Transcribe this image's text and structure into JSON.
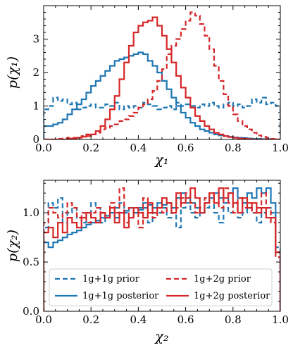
{
  "chart_data": [
    {
      "type": "line",
      "step": true,
      "xlabel": "χ₁",
      "ylabel": "p(χ₁)",
      "xlim": [
        0.0,
        1.0
      ],
      "ylim": [
        0.0,
        4.0
      ],
      "x_ticks": [
        "0.0",
        "0.2",
        "0.4",
        "0.6",
        "0.8",
        "1.0"
      ],
      "y_ticks": [
        "0",
        "1",
        "2",
        "3"
      ],
      "x_tick_values": [
        0.0,
        0.2,
        0.4,
        0.6,
        0.8,
        1.0
      ],
      "y_tick_values": [
        0,
        1,
        2,
        3
      ],
      "bin_edges_start": 0.0,
      "bin_width": 0.02,
      "series": [
        {
          "name": "1g+1g prior",
          "color": "#1f77b4",
          "style": "dashed",
          "values": [
            0.9,
            1.0,
            1.25,
            1.15,
            1.2,
            1.05,
            1.1,
            0.9,
            0.95,
            1.0,
            1.05,
            0.95,
            0.95,
            1.05,
            1.0,
            1.1,
            0.9,
            1.0,
            0.95,
            1.0,
            0.95,
            1.1,
            1.05,
            1.0,
            0.9,
            0.95,
            1.0,
            0.9,
            1.1,
            1.0,
            1.05,
            1.0,
            0.95,
            1.05,
            1.0,
            1.1,
            1.0,
            0.95,
            1.05,
            1.1,
            1.0,
            1.05,
            0.95,
            1.0,
            1.2,
            1.1,
            1.25,
            1.05,
            1.1,
            1.0
          ]
        },
        {
          "name": "1g+1g posterior",
          "color": "#1f77b4",
          "style": "solid",
          "values": [
            0.4,
            0.4,
            0.45,
            0.5,
            0.6,
            0.75,
            0.9,
            1.05,
            1.2,
            1.4,
            1.6,
            1.75,
            1.9,
            2.05,
            2.2,
            2.35,
            2.4,
            2.45,
            2.5,
            2.55,
            2.6,
            2.55,
            2.35,
            2.2,
            2.0,
            1.75,
            1.5,
            1.25,
            1.0,
            0.8,
            0.65,
            0.5,
            0.4,
            0.3,
            0.25,
            0.2,
            0.15,
            0.12,
            0.1,
            0.08,
            0.06,
            0.05,
            0.04,
            0.03,
            0.02,
            0.02,
            0.01,
            0.01,
            0.0,
            0.0
          ]
        },
        {
          "name": "1g+2g prior",
          "color": "#d62728",
          "style": "dashed",
          "values": [
            0.0,
            0.0,
            0.0,
            0.02,
            0.03,
            0.05,
            0.05,
            0.05,
            0.1,
            0.15,
            0.15,
            0.2,
            0.3,
            0.35,
            0.4,
            0.45,
            0.55,
            0.6,
            0.7,
            0.8,
            0.95,
            1.05,
            1.2,
            1.45,
            1.75,
            2.1,
            2.55,
            2.8,
            3.0,
            3.3,
            3.55,
            3.8,
            3.7,
            3.45,
            3.1,
            2.7,
            2.2,
            1.75,
            1.35,
            1.0,
            0.75,
            0.55,
            0.4,
            0.3,
            0.2,
            0.12,
            0.08,
            0.05,
            0.02,
            0.0
          ]
        },
        {
          "name": "1g+2g posterior",
          "color": "#d62728",
          "style": "solid",
          "values": [
            0.0,
            0.0,
            0.0,
            0.0,
            0.0,
            0.02,
            0.03,
            0.05,
            0.08,
            0.1,
            0.15,
            0.25,
            0.4,
            0.6,
            0.9,
            1.3,
            1.8,
            2.3,
            2.8,
            3.2,
            3.4,
            3.5,
            3.55,
            3.65,
            3.4,
            3.1,
            2.7,
            2.3,
            1.9,
            1.55,
            1.25,
            0.95,
            0.7,
            0.55,
            0.4,
            0.3,
            0.2,
            0.15,
            0.1,
            0.07,
            0.05,
            0.03,
            0.02,
            0.01,
            0.0,
            0.0,
            0.0,
            0.0,
            0.0,
            0.0
          ]
        }
      ]
    },
    {
      "type": "line",
      "step": true,
      "xlabel": "χ₂",
      "ylabel": "p(χ₂)",
      "xlim": [
        0.0,
        1.0
      ],
      "ylim": [
        0.0,
        1.33
      ],
      "x_ticks": [
        "0.0",
        "0.2",
        "0.4",
        "0.6",
        "0.8",
        "1.0"
      ],
      "y_ticks": [
        "0.0",
        "0.5",
        "1.0"
      ],
      "x_tick_values": [
        0.0,
        0.2,
        0.4,
        0.6,
        0.8,
        1.0
      ],
      "y_tick_values": [
        0.0,
        0.5,
        1.0
      ],
      "bin_edges_start": 0.0,
      "bin_width": 0.02,
      "legend": {
        "location": "lower-center",
        "columns": 2,
        "entries": [
          "1g+1g prior",
          "1g+2g prior",
          "1g+1g posterior",
          "1g+2g posterior"
        ]
      },
      "series": [
        {
          "name": "1g+1g prior",
          "color": "#1f77b4",
          "style": "dashed",
          "values": [
            0.85,
            1.1,
            1.05,
            1.15,
            0.9,
            1.0,
            1.05,
            0.95,
            0.9,
            1.0,
            1.1,
            1.05,
            0.9,
            0.95,
            1.0,
            1.05,
            1.1,
            1.0,
            0.95,
            1.0,
            1.05,
            1.1,
            0.9,
            1.0,
            1.0,
            1.05,
            0.95,
            1.0,
            0.85,
            1.05,
            1.1,
            1.0,
            0.95,
            1.0,
            1.05,
            1.15,
            1.0,
            0.9,
            1.05,
            1.0,
            1.1,
            0.95,
            1.0,
            1.05,
            1.0,
            0.9,
            1.0,
            1.05,
            1.0,
            0.65
          ]
        },
        {
          "name": "1g+1g posterior",
          "color": "#1f77b4",
          "style": "solid",
          "values": [
            0.7,
            0.65,
            0.7,
            0.72,
            0.75,
            0.78,
            0.8,
            0.82,
            0.85,
            0.88,
            0.9,
            0.92,
            0.95,
            0.97,
            1.0,
            0.95,
            1.0,
            1.02,
            1.05,
            1.0,
            1.03,
            1.05,
            1.08,
            1.05,
            1.1,
            1.08,
            1.1,
            1.05,
            1.15,
            1.2,
            1.15,
            1.1,
            1.05,
            1.0,
            1.1,
            1.15,
            1.2,
            1.15,
            1.1,
            1.2,
            1.25,
            1.15,
            1.1,
            1.2,
            1.15,
            1.25,
            1.2,
            1.25,
            1.1,
            0.6
          ]
        },
        {
          "name": "1g+2g prior",
          "color": "#d62728",
          "style": "dashed",
          "values": [
            0.9,
            1.05,
            1.0,
            0.95,
            1.0,
            1.1,
            1.05,
            0.95,
            1.0,
            0.9,
            1.0,
            1.05,
            1.0,
            0.95,
            1.1,
            1.0,
            1.25,
            0.9,
            1.05,
            1.0,
            0.85,
            1.15,
            1.0,
            0.95,
            1.05,
            1.0,
            1.1,
            1.0,
            1.05,
            1.15,
            1.2,
            1.1,
            1.0,
            1.05,
            1.15,
            1.2,
            1.1,
            1.05,
            1.25,
            1.1,
            1.0,
            1.15,
            1.05,
            1.1,
            1.0,
            1.05,
            1.2,
            1.05,
            0.9,
            0.55
          ]
        },
        {
          "name": "1g+2g posterior",
          "color": "#d62728",
          "style": "solid",
          "values": [
            0.8,
            0.85,
            0.75,
            0.9,
            0.8,
            0.95,
            0.9,
            0.85,
            0.95,
            1.0,
            0.95,
            0.9,
            1.0,
            0.95,
            1.05,
            0.9,
            1.0,
            0.85,
            0.95,
            1.05,
            1.0,
            0.95,
            1.1,
            1.0,
            1.05,
            1.15,
            1.1,
            1.0,
            1.2,
            1.1,
            1.15,
            1.25,
            1.15,
            1.0,
            1.1,
            1.2,
            1.1,
            1.25,
            1.15,
            1.2,
            1.1,
            1.0,
            1.15,
            1.05,
            1.1,
            1.0,
            1.05,
            0.95,
            0.95,
            0.6
          ]
        }
      ]
    }
  ]
}
